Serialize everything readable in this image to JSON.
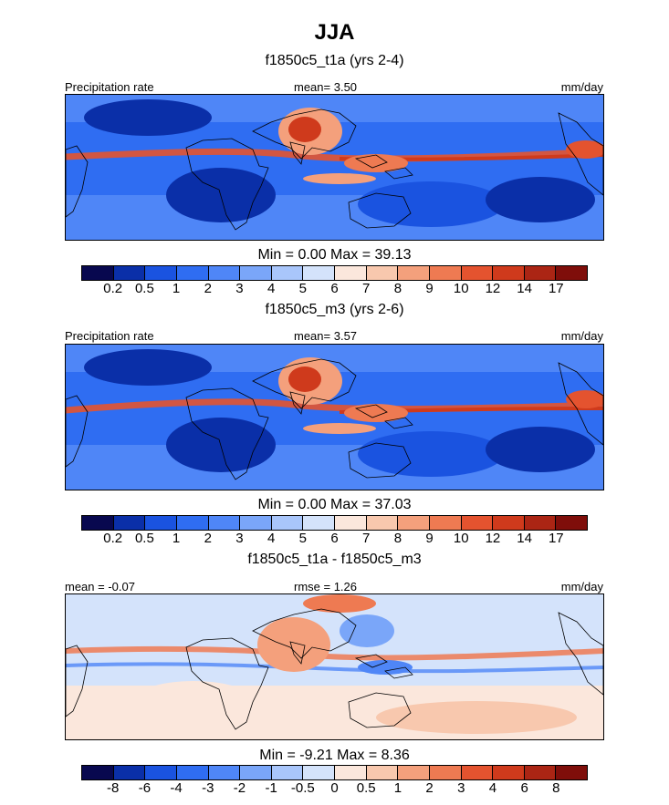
{
  "figure": {
    "title": "JJA"
  },
  "colors": {
    "abs": [
      "#08084f",
      "#0a2fa8",
      "#1a53e0",
      "#2f6df2",
      "#4f86f7",
      "#7aa6f9",
      "#a9c6fb",
      "#d4e3fb",
      "#fbe7dc",
      "#f8c8ae",
      "#f4a07c",
      "#ee7a52",
      "#e4532f",
      "#cf3a1c",
      "#ab2514",
      "#7f0e0a"
    ],
    "diff": [
      "#08084f",
      "#0a2fa8",
      "#1a53e0",
      "#2f6df2",
      "#4f86f7",
      "#7aa6f9",
      "#a9c6fb",
      "#d4e3fb",
      "#fbe7dc",
      "#f8c8ae",
      "#f4a07c",
      "#ee7a52",
      "#e4532f",
      "#cf3a1c",
      "#ab2514",
      "#7f0e0a"
    ]
  },
  "chart_data": [
    {
      "type": "heatmap",
      "title": "f1850c5_t1a (yrs 2-4)",
      "left_label": "Precipitation rate",
      "center_label": "mean=   3.50",
      "units": "mm/day",
      "stats": "Min =   0.00 Max =  39.13",
      "min": 0.0,
      "max": 39.13,
      "mean": 3.5,
      "colorbar_levels": [
        "0.2",
        "0.5",
        "1",
        "2",
        "3",
        "4",
        "5",
        "6",
        "7",
        "8",
        "9",
        "10",
        "12",
        "14",
        "17"
      ]
    },
    {
      "type": "heatmap",
      "title": "f1850c5_m3 (yrs 2-6)",
      "left_label": "Precipitation rate",
      "center_label": "mean=   3.57",
      "units": "mm/day",
      "stats": "Min =   0.00 Max =  37.03",
      "min": 0.0,
      "max": 37.03,
      "mean": 3.57,
      "colorbar_levels": [
        "0.2",
        "0.5",
        "1",
        "2",
        "3",
        "4",
        "5",
        "6",
        "7",
        "8",
        "9",
        "10",
        "12",
        "14",
        "17"
      ]
    },
    {
      "type": "heatmap",
      "title": "f1850c5_t1a - f1850c5_m3",
      "left_label": "mean =  -0.07",
      "center_label": "rmse =   1.26",
      "units": "mm/day",
      "stats": "Min =  -9.21 Max =   8.36",
      "min": -9.21,
      "max": 8.36,
      "mean": -0.07,
      "rmse": 1.26,
      "colorbar_levels": [
        "-8",
        "-6",
        "-4",
        "-3",
        "-2",
        "-1",
        "-0.5",
        "0",
        "0.5",
        "1",
        "2",
        "3",
        "4",
        "6",
        "8"
      ]
    }
  ]
}
